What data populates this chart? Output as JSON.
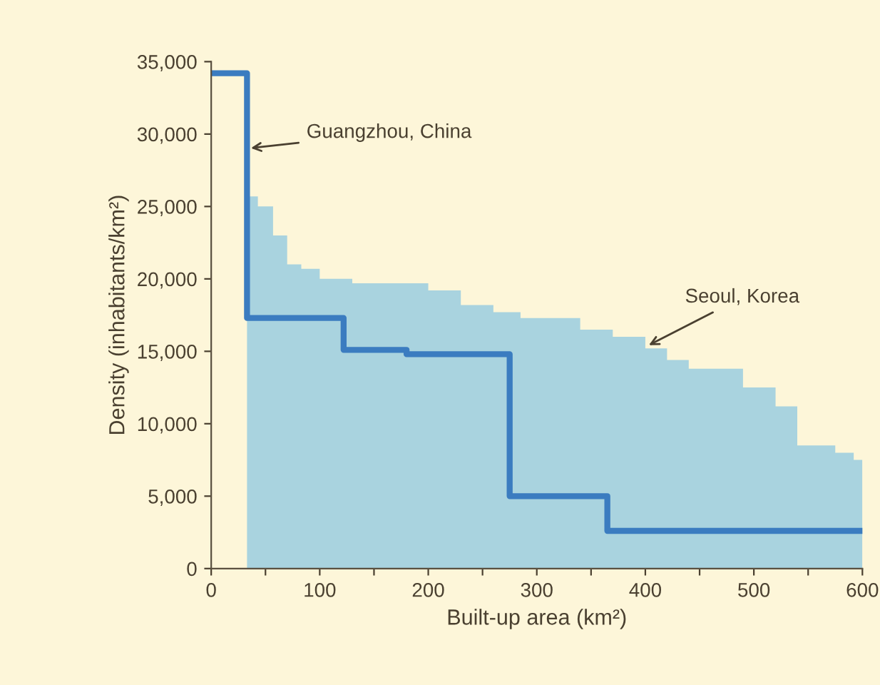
{
  "chart_data": {
    "type": "step",
    "xlabel": "Built-up area (km²)",
    "ylabel": "Density (inhabitants/km²)",
    "series": [
      {
        "type": "area",
        "color": "#a9d3df",
        "x": [
          33,
          43,
          57,
          70,
          83,
          100,
          130,
          200,
          230,
          260,
          285,
          340,
          370,
          400,
          420,
          440,
          490,
          520,
          540,
          575,
          592,
          600
        ],
        "values": [
          25700,
          25000,
          23000,
          21000,
          20700,
          20000,
          19700,
          19200,
          18200,
          17700,
          17300,
          16500,
          16000,
          15200,
          14400,
          13800,
          12500,
          11200,
          8500,
          8000,
          7500,
          7500
        ]
      },
      {
        "color": "#3b7cc0",
        "x": [
          0,
          33,
          122,
          180,
          275,
          365,
          600
        ],
        "values": [
          34200,
          17300,
          15100,
          14800,
          5000,
          2600,
          2600
        ]
      }
    ],
    "annotations": [
      {
        "text": "Guangzhou, China",
        "x": 33,
        "y": 29000
      },
      {
        "text": "Seoul, Korea",
        "x": 400,
        "y": 15300
      }
    ],
    "xlim": [
      0,
      600
    ],
    "ylim": [
      0,
      35000
    ],
    "xticks": [
      0,
      {
        "value": 50,
        "label": null
      },
      100,
      {
        "value": 150,
        "label": null
      },
      200,
      {
        "value": 250,
        "label": null
      },
      300,
      {
        "value": 350,
        "label": null
      },
      400,
      {
        "value": 450,
        "label": null
      },
      500,
      {
        "value": 550,
        "label": null
      },
      600
    ],
    "yticks": [
      0,
      {
        "value": 5000,
        "label": "5,000"
      },
      {
        "value": 10000,
        "label": "10,000"
      },
      {
        "value": 15000,
        "label": "15,000"
      },
      {
        "value": 20000,
        "label": "20,000"
      },
      {
        "value": 25000,
        "label": "25,000"
      },
      {
        "value": 30000,
        "label": "30,000"
      },
      {
        "value": 35000,
        "label": "35,000"
      }
    ],
    "grid": false,
    "line_style": "solid"
  }
}
